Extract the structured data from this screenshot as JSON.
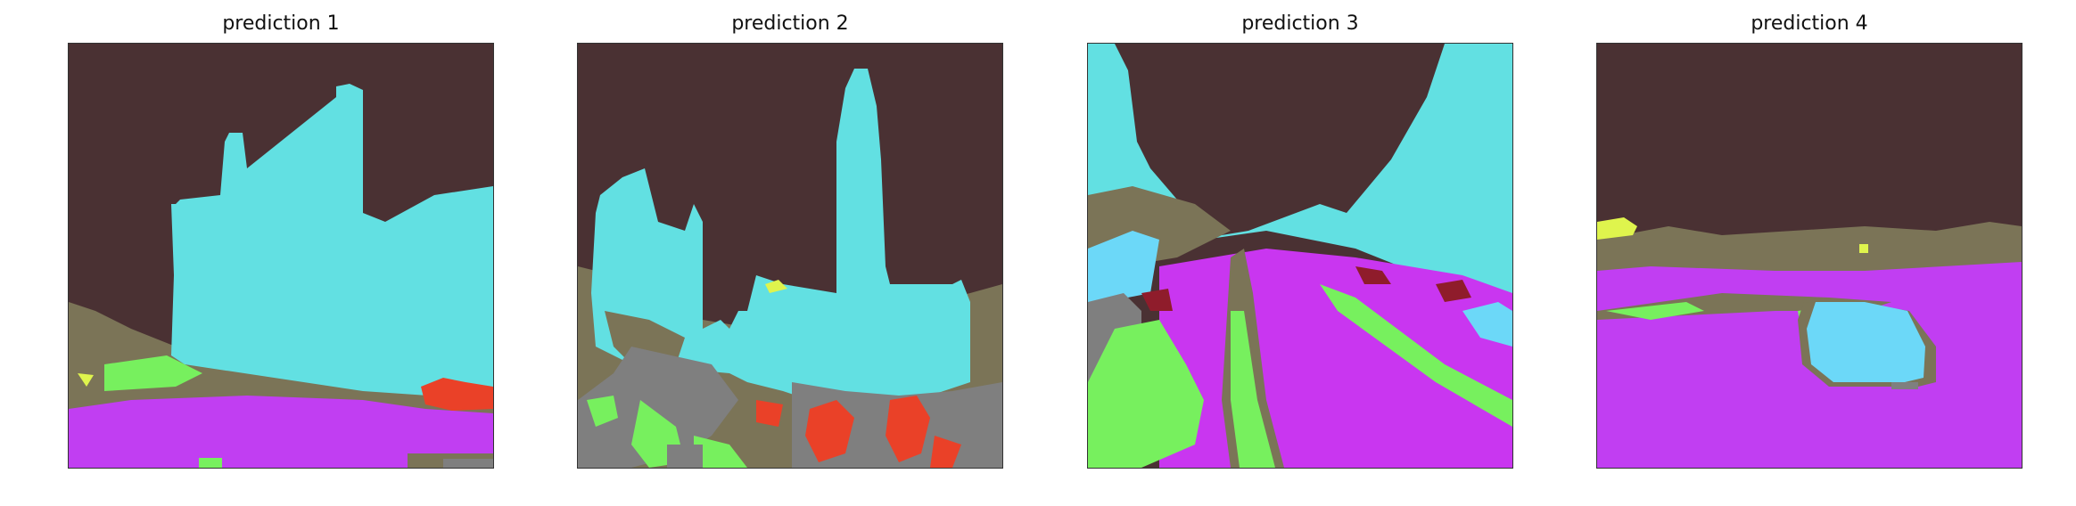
{
  "panels": [
    {
      "title": "prediction 1"
    },
    {
      "title": "prediction 2"
    },
    {
      "title": "prediction 3"
    },
    {
      "title": "prediction 4"
    }
  ],
  "colors": {
    "sky": "#4a3133",
    "cyan": "#62e0e2",
    "light_blue": "#6cd8f8",
    "olive": "#7b7457",
    "gray": "#7f7f7f",
    "magenta": "#c13ef2",
    "magenta_alt": "#c936f0",
    "green": "#77f05e",
    "red": "#ea4128",
    "dark_red": "#8f1c2b",
    "yellow": "#dff44d"
  }
}
